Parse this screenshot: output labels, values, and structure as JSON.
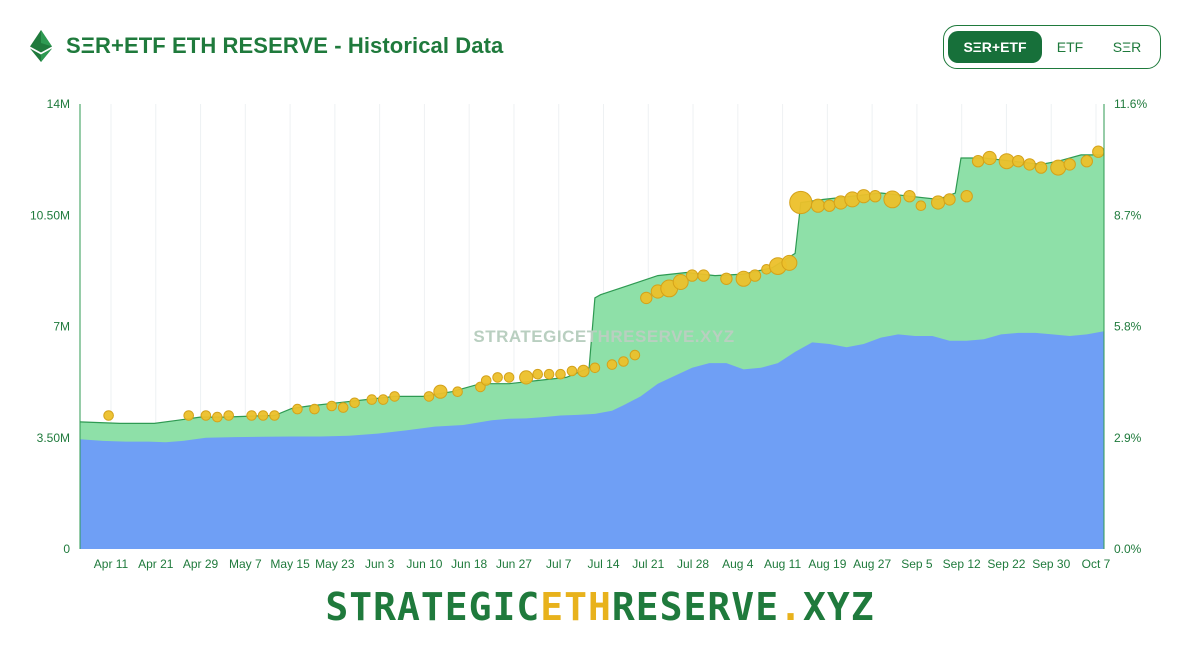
{
  "header": {
    "title": "SΞR+ETF ETH RESERVE - Historical Data",
    "logo_icon": "ethereum-icon"
  },
  "toggle": {
    "options": [
      "SΞR+ETF",
      "ETF",
      "SΞR"
    ],
    "active": "SΞR+ETF"
  },
  "watermark": "STRATEGICETHRESERVE.XYZ",
  "footer": {
    "part1": "STRATEGIC",
    "part2": "ETH",
    "part3": "RESERVE",
    "part4": ".",
    "part5": "XYZ"
  },
  "colors": {
    "accent": "#1f7a3c",
    "etf_area": "#6f9ff5",
    "ser_area": "#8ee0a8",
    "bubble": "#ecc02a",
    "bubble_stroke": "#d4a21a"
  },
  "chart_data": {
    "type": "area",
    "title": "SΞR+ETF ETH RESERVE - Historical Data",
    "x_tick_labels": [
      "Apr 11",
      "Apr 21",
      "Apr 29",
      "May 7",
      "May 15",
      "May 23",
      "Jun 3",
      "Jun 10",
      "Jun 18",
      "Jun 27",
      "Jul 7",
      "Jul 14",
      "Jul 21",
      "Jul 28",
      "Aug 4",
      "Aug 11",
      "Aug 19",
      "Aug 27",
      "Sep 5",
      "Sep 12",
      "Sep 22",
      "Sep 30",
      "Oct 7"
    ],
    "y_left": {
      "ticks": [
        "0",
        "3.50M",
        "7M",
        "10.50M",
        "14M"
      ],
      "range": [
        0,
        14000000
      ]
    },
    "y_right": {
      "ticks": [
        "0.0%",
        "2.9%",
        "5.8%",
        "8.7%",
        "11.6%"
      ],
      "range": [
        0,
        11.6
      ]
    },
    "x_range": [
      0,
      179
    ],
    "stacked": true,
    "series": [
      {
        "key": "etf",
        "x": [
          0,
          4,
          8,
          12,
          15,
          18,
          22,
          27,
          32,
          37,
          42,
          47,
          52,
          57,
          62,
          67,
          72,
          75,
          78,
          81,
          84,
          87,
          90,
          93,
          95,
          98,
          101,
          104,
          107,
          110,
          113,
          116,
          119,
          122,
          125,
          128,
          131,
          134,
          137,
          140,
          143,
          146,
          149,
          152,
          155,
          158,
          161,
          164,
          167,
          170,
          173,
          176,
          179
        ],
        "values": [
          3450000,
          3400000,
          3380000,
          3380000,
          3360000,
          3400000,
          3500000,
          3520000,
          3530000,
          3540000,
          3540000,
          3560000,
          3630000,
          3730000,
          3850000,
          3900000,
          4050000,
          4100000,
          4110000,
          4150000,
          4200000,
          4220000,
          4250000,
          4350000,
          4520000,
          4800000,
          5200000,
          5450000,
          5700000,
          5850000,
          5850000,
          5650000,
          5700000,
          5850000,
          6200000,
          6500000,
          6450000,
          6350000,
          6450000,
          6650000,
          6750000,
          6700000,
          6700000,
          6550000,
          6550000,
          6600000,
          6750000,
          6800000,
          6800000,
          6750000,
          6700000,
          6750000,
          6850000
        ]
      },
      {
        "key": "total",
        "x": [
          0,
          7,
          13,
          17,
          21,
          25,
          30,
          34,
          37,
          40,
          45,
          50,
          55,
          60,
          65,
          70,
          75,
          80,
          85,
          89,
          90,
          91,
          96,
          101,
          106,
          111,
          116,
          121,
          125,
          126,
          130,
          135,
          140,
          145,
          150,
          153,
          154,
          158,
          163,
          168,
          171,
          175,
          179
        ],
        "values": [
          4000000,
          3950000,
          3950000,
          4050000,
          4150000,
          4150000,
          4180000,
          4200000,
          4420000,
          4500000,
          4600000,
          4700000,
          4800000,
          4800000,
          4950000,
          5200000,
          5200000,
          5300000,
          5400000,
          5700000,
          7900000,
          8000000,
          8300000,
          8600000,
          8700000,
          8600000,
          8650000,
          8850000,
          9300000,
          10900000,
          11000000,
          11100000,
          11200000,
          11100000,
          11000000,
          11200000,
          12300000,
          12300000,
          12200000,
          12100000,
          12200000,
          12400000,
          12400000
        ]
      }
    ],
    "bubbles": {
      "x": [
        5,
        19,
        22,
        24,
        26,
        30,
        32,
        34,
        38,
        41,
        44,
        46,
        48,
        51,
        53,
        55,
        61,
        63,
        66,
        70,
        71,
        73,
        75,
        78,
        80,
        82,
        84,
        86,
        88,
        90,
        93,
        95,
        97,
        99,
        101,
        103,
        105,
        107,
        109,
        113,
        116,
        118,
        120,
        122,
        124,
        126,
        129,
        131,
        133,
        135,
        137,
        139,
        142,
        145,
        147,
        150,
        152,
        155,
        157,
        159,
        162,
        164,
        166,
        168,
        171,
        173,
        176,
        178
      ],
      "values": [
        4200000,
        4200000,
        4200000,
        4150000,
        4200000,
        4200000,
        4200000,
        4200000,
        4400000,
        4400000,
        4500000,
        4450000,
        4600000,
        4700000,
        4700000,
        4800000,
        4800000,
        4950000,
        4950000,
        5100000,
        5300000,
        5400000,
        5400000,
        5400000,
        5500000,
        5500000,
        5500000,
        5600000,
        5600000,
        5700000,
        5800000,
        5900000,
        6100000,
        7900000,
        8100000,
        8200000,
        8400000,
        8600000,
        8600000,
        8500000,
        8500000,
        8600000,
        8800000,
        8900000,
        9000000,
        10900000,
        10800000,
        10800000,
        10900000,
        11000000,
        11100000,
        11100000,
        11000000,
        11100000,
        10800000,
        10900000,
        11000000,
        11100000,
        12200000,
        12300000,
        12200000,
        12200000,
        12100000,
        12000000,
        12000000,
        12100000,
        12200000,
        12500000
      ],
      "sizes": [
        2,
        2,
        2,
        2,
        2,
        2,
        2,
        2,
        2,
        2,
        2,
        2,
        2,
        2,
        2,
        2,
        2,
        4,
        2,
        2,
        2,
        2,
        2,
        4,
        2,
        2,
        2,
        2,
        3,
        2,
        2,
        2,
        2,
        3,
        4,
        6,
        5,
        3,
        3,
        3,
        5,
        3,
        2,
        6,
        5,
        9,
        4,
        3,
        4,
        5,
        4,
        3,
        6,
        3,
        2,
        4,
        3,
        3,
        3,
        4,
        5,
        3,
        3,
        3,
        5,
        3,
        3,
        3
      ]
    }
  }
}
